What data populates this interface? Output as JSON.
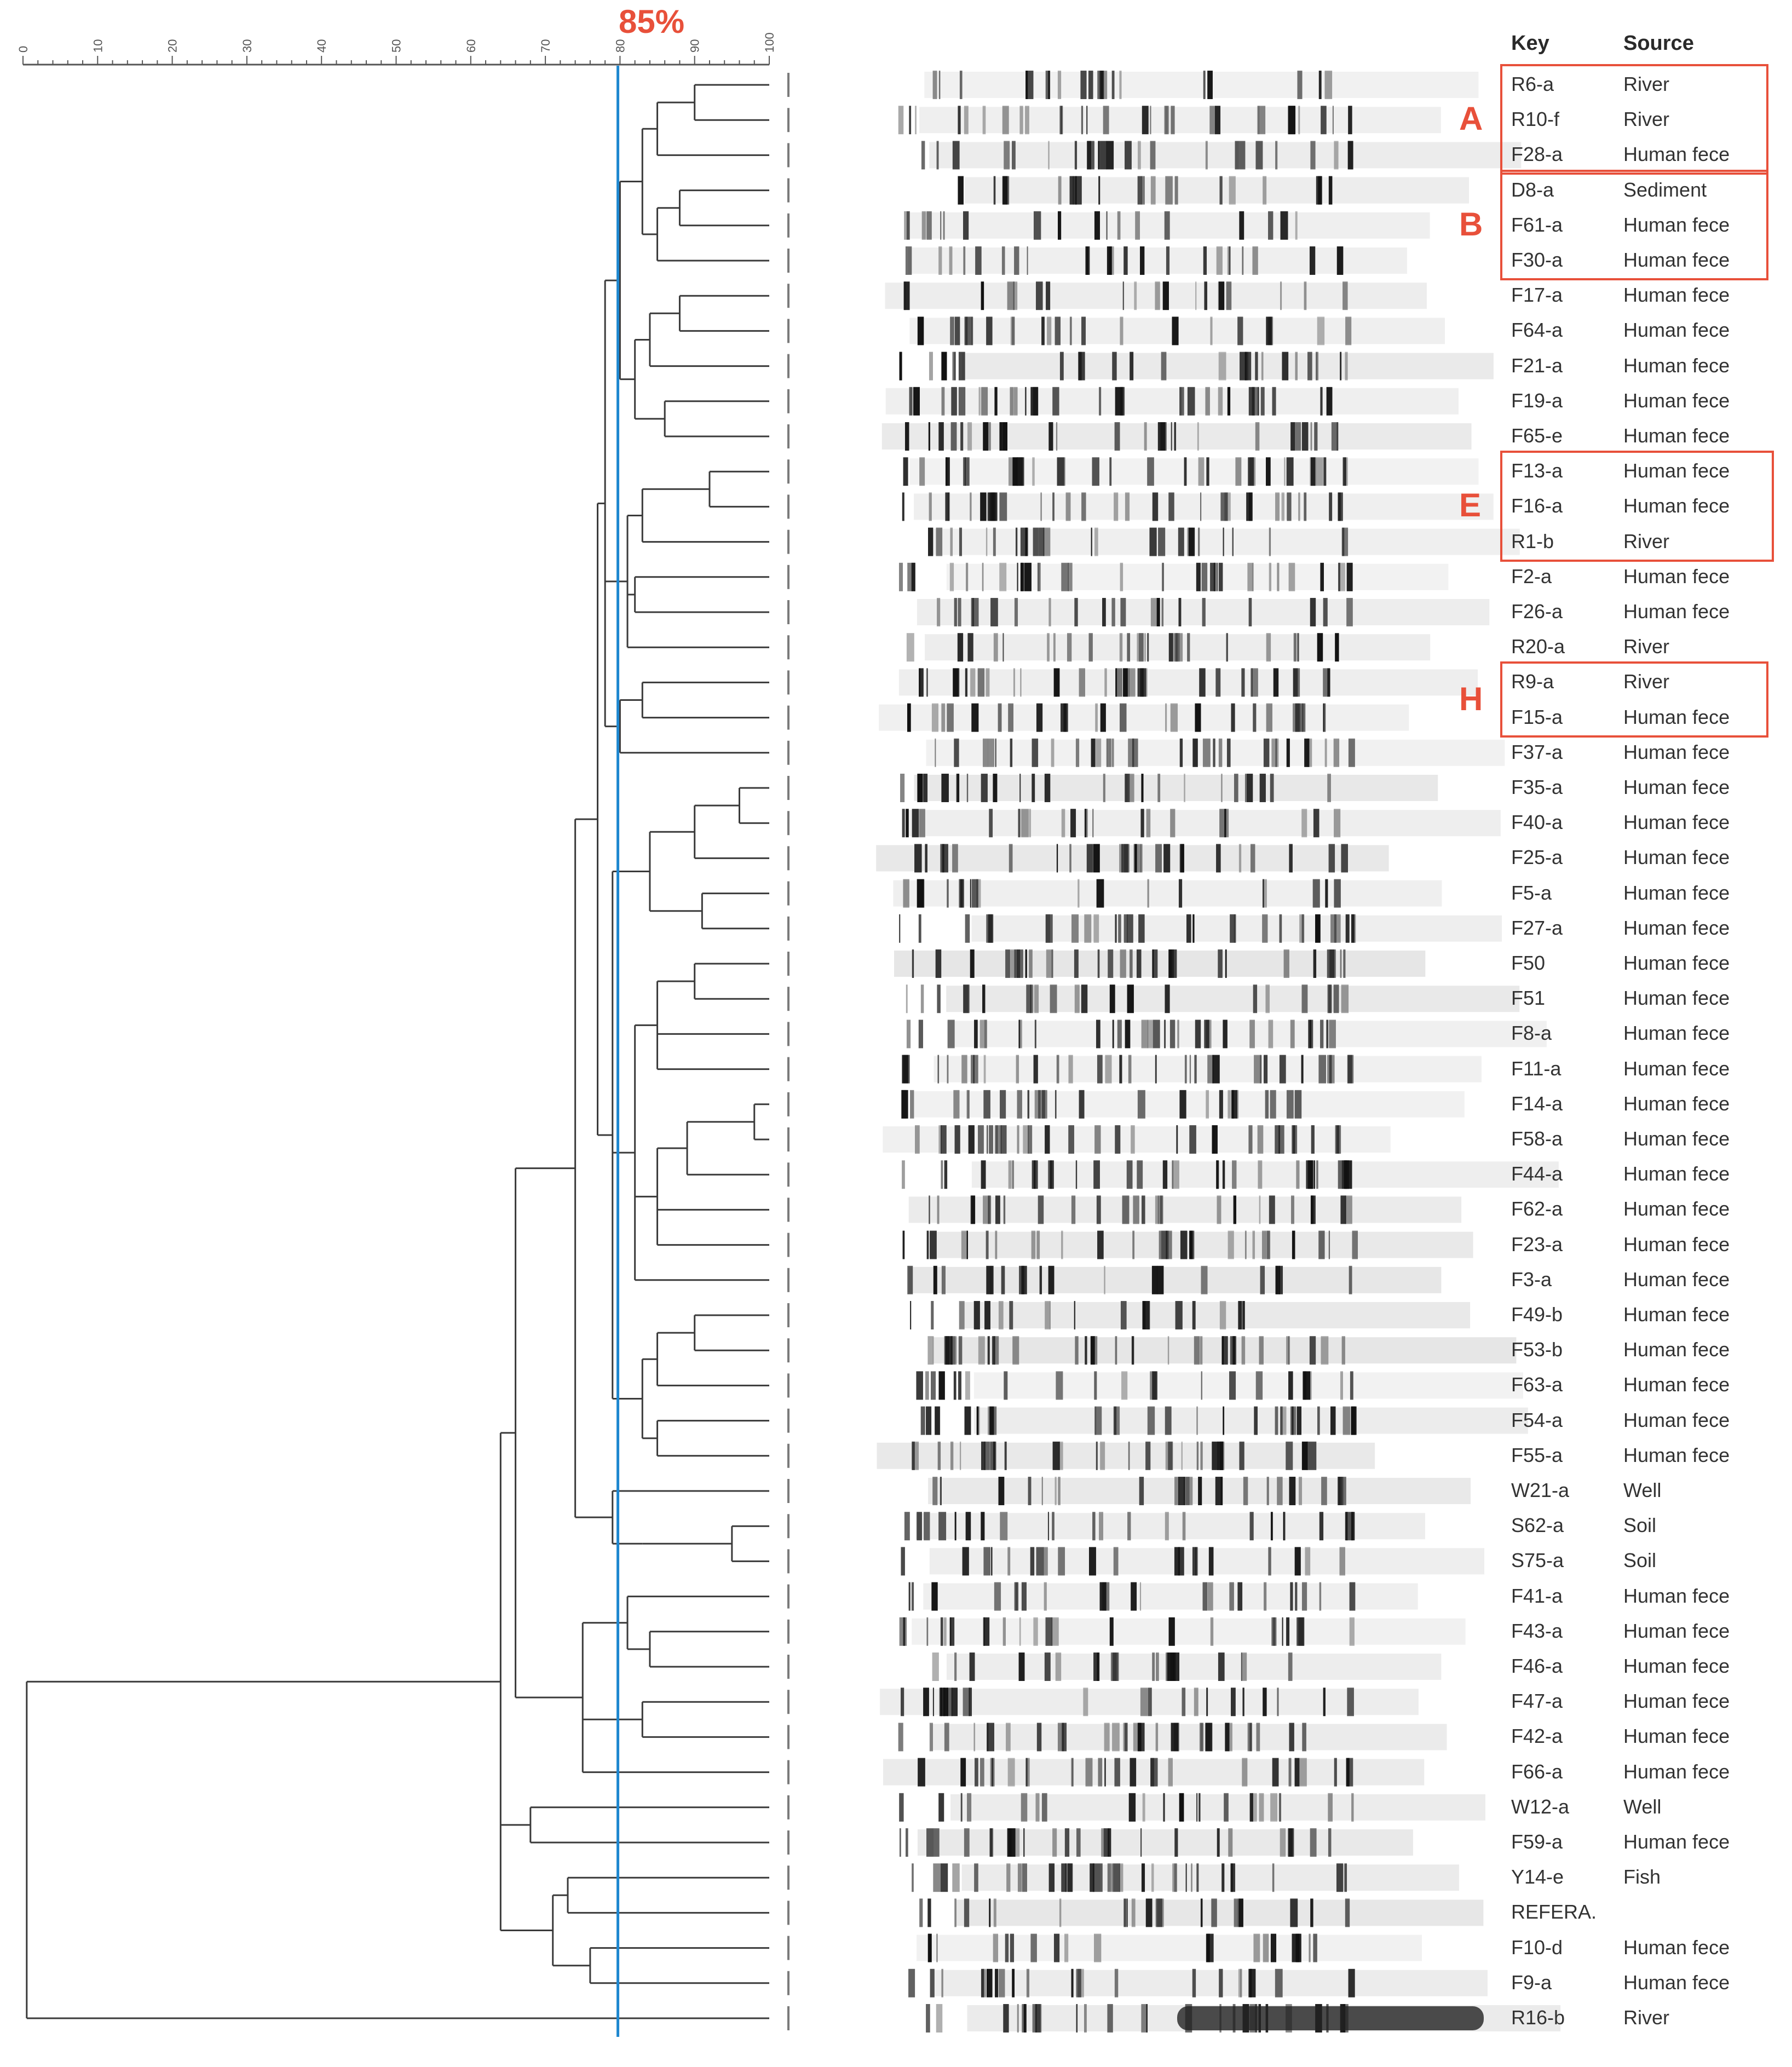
{
  "header": {
    "key_label": "Key",
    "source_label": "Source"
  },
  "threshold": {
    "label": "85%",
    "value": 85
  },
  "scale": {
    "ticks": [
      "0",
      "10",
      "20",
      "30",
      "40",
      "50",
      "60",
      "70",
      "80",
      "90",
      "100"
    ],
    "min": 0,
    "max": 100
  },
  "isolates": [
    {
      "key": "R6-a",
      "source": "River"
    },
    {
      "key": "R10-f",
      "source": "River"
    },
    {
      "key": "F28-a",
      "source": "Human fece"
    },
    {
      "key": "D8-a",
      "source": "Sediment"
    },
    {
      "key": "F61-a",
      "source": "Human fece"
    },
    {
      "key": "F30-a",
      "source": "Human fece"
    },
    {
      "key": "F17-a",
      "source": "Human fece"
    },
    {
      "key": "F64-a",
      "source": "Human fece"
    },
    {
      "key": "F21-a",
      "source": "Human fece"
    },
    {
      "key": "F19-a",
      "source": "Human fece"
    },
    {
      "key": "F65-e",
      "source": "Human fece"
    },
    {
      "key": "F13-a",
      "source": "Human fece"
    },
    {
      "key": "F16-a",
      "source": "Human fece"
    },
    {
      "key": "R1-b",
      "source": "River"
    },
    {
      "key": "F2-a",
      "source": "Human fece"
    },
    {
      "key": "F26-a",
      "source": "Human fece"
    },
    {
      "key": "R20-a",
      "source": "River"
    },
    {
      "key": "R9-a",
      "source": "River"
    },
    {
      "key": "F15-a",
      "source": "Human fece"
    },
    {
      "key": "F37-a",
      "source": "Human fece"
    },
    {
      "key": "F35-a",
      "source": "Human fece"
    },
    {
      "key": "F40-a",
      "source": "Human fece"
    },
    {
      "key": "F25-a",
      "source": "Human fece"
    },
    {
      "key": "F5-a",
      "source": "Human fece"
    },
    {
      "key": "F27-a",
      "source": "Human fece"
    },
    {
      "key": "F50",
      "source": "Human fece"
    },
    {
      "key": "F51",
      "source": "Human fece"
    },
    {
      "key": "F8-a",
      "source": "Human fece"
    },
    {
      "key": "F11-a",
      "source": "Human fece"
    },
    {
      "key": "F14-a",
      "source": "Human fece"
    },
    {
      "key": "F58-a",
      "source": "Human fece"
    },
    {
      "key": "F44-a",
      "source": "Human fece"
    },
    {
      "key": "F62-a",
      "source": "Human fece"
    },
    {
      "key": "F23-a",
      "source": "Human fece"
    },
    {
      "key": "F3-a",
      "source": "Human fece"
    },
    {
      "key": "F49-b",
      "source": "Human fece"
    },
    {
      "key": "F53-b",
      "source": "Human fece"
    },
    {
      "key": "F63-a",
      "source": "Human fece"
    },
    {
      "key": "F54-a",
      "source": "Human fece"
    },
    {
      "key": "F55-a",
      "source": "Human fece"
    },
    {
      "key": "W21-a",
      "source": "Well"
    },
    {
      "key": "S62-a",
      "source": "Soil"
    },
    {
      "key": "S75-a",
      "source": "Soil"
    },
    {
      "key": "F41-a",
      "source": "Human fece"
    },
    {
      "key": "F43-a",
      "source": "Human fece"
    },
    {
      "key": "F46-a",
      "source": "Human fece"
    },
    {
      "key": "F47-a",
      "source": "Human fece"
    },
    {
      "key": "F42-a",
      "source": "Human fece"
    },
    {
      "key": "F66-a",
      "source": "Human fece"
    },
    {
      "key": "W12-a",
      "source": "Well"
    },
    {
      "key": "F59-a",
      "source": "Human fece"
    },
    {
      "key": "Y14-e",
      "source": "Fish"
    },
    {
      "key": "REFERA.",
      "source": ""
    },
    {
      "key": "F10-d",
      "source": "Human fece"
    },
    {
      "key": "F9-a",
      "source": "Human fece"
    },
    {
      "key": "R16-b",
      "source": "River"
    }
  ],
  "clusters": [
    {
      "label": "A",
      "first": 0,
      "last": 2
    },
    {
      "label": "B",
      "first": 3,
      "last": 5
    },
    {
      "label": "E",
      "first": 11,
      "last": 13
    },
    {
      "label": "H",
      "first": 17,
      "last": 18
    }
  ],
  "colors": {
    "highlight": "#e8503a",
    "threshold_line": "#1f88d0",
    "tree": "#3a3a3a"
  }
}
